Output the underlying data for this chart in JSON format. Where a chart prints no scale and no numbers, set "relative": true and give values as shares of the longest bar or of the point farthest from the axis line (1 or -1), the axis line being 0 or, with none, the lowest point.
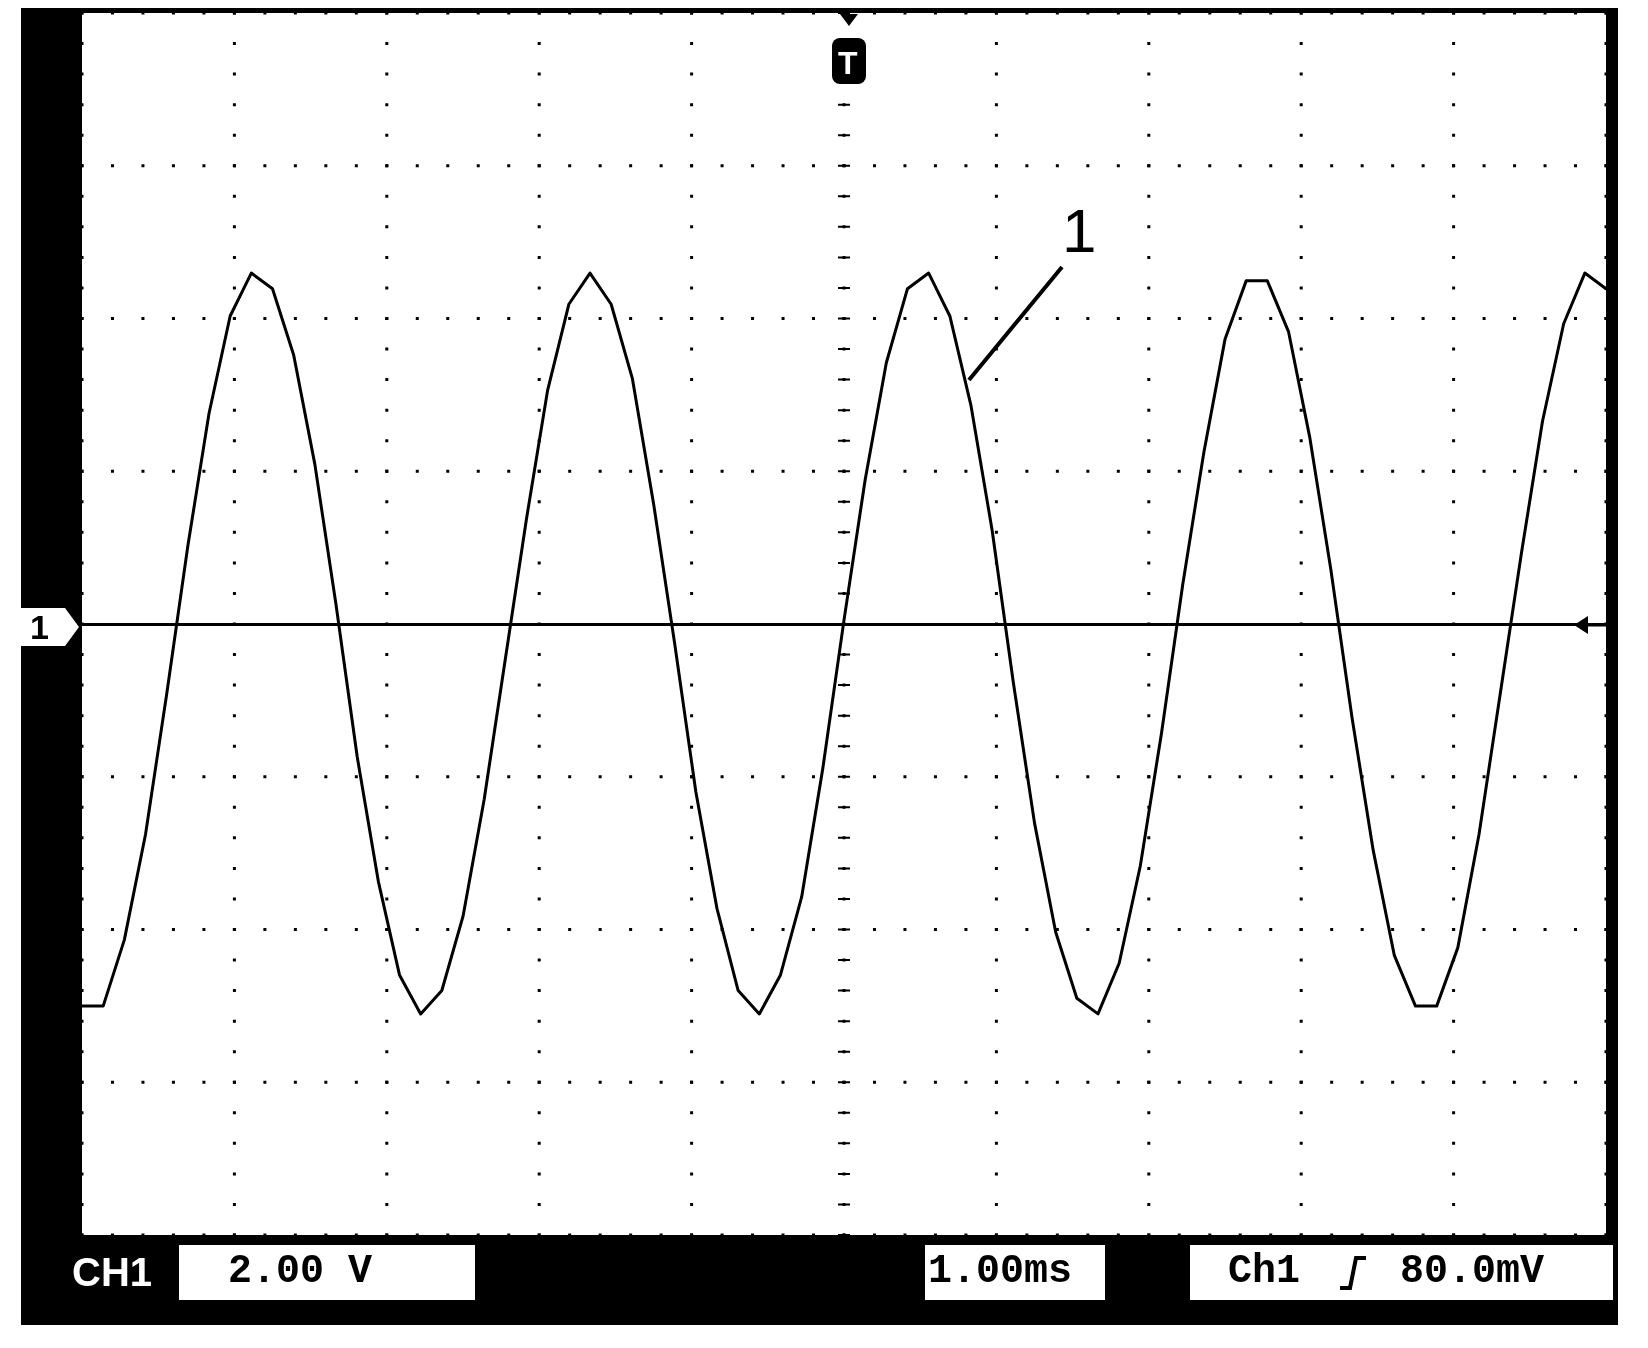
{
  "chart_data": {
    "type": "line",
    "relative": true,
    "grid": true,
    "legend": false,
    "marker": "none",
    "categories": [
      null,
      null,
      null,
      null,
      null,
      null,
      null,
      null,
      null,
      null,
      null,
      null,
      null,
      null,
      null,
      null,
      null,
      null,
      null,
      null,
      null,
      null,
      null,
      null,
      null,
      null,
      null,
      null,
      null,
      null,
      null,
      null,
      null,
      null,
      null,
      null,
      null,
      null,
      null,
      null,
      null,
      null,
      null,
      null,
      null,
      null,
      null,
      null,
      null,
      null,
      null,
      null,
      null,
      null,
      null,
      null,
      null,
      null,
      null,
      null,
      null,
      null,
      null,
      null,
      null,
      null,
      null,
      null,
      null,
      null,
      null,
      null,
      null
    ],
    "series": [
      {
        "color": "#000000",
        "values": [
          -0.98,
          -0.98,
          -0.81,
          -0.54,
          -0.18,
          0.2,
          0.54,
          0.79,
          0.9,
          0.86,
          0.69,
          0.41,
          0.05,
          -0.34,
          -0.66,
          -0.9,
          -1,
          -0.94,
          -0.75,
          -0.45,
          -0.09,
          0.27,
          0.6,
          0.82,
          0.9,
          0.82,
          0.63,
          0.31,
          -0.05,
          -0.43,
          -0.73,
          -0.94,
          -1,
          -0.9,
          -0.7,
          -0.37,
          0.01,
          0.37,
          0.67,
          0.86,
          0.9,
          0.79,
          0.56,
          0.24,
          -0.15,
          -0.51,
          -0.79,
          -0.96,
          -1,
          -0.87,
          -0.62,
          -0.28,
          0.1,
          0.44,
          0.73,
          0.88,
          0.88,
          0.75,
          0.48,
          0.14,
          -0.24,
          -0.58,
          -0.85,
          -0.98,
          -0.98,
          -0.83,
          -0.54,
          -0.18,
          0.18,
          0.52,
          0.77,
          0.9,
          0.86
        ]
      }
    ],
    "annotations": [
      "1",
      "1",
      "T",
      "CH1",
      "2.00 V",
      "1.00ms",
      "Ch1",
      "80.0mV"
    ]
  }
}
